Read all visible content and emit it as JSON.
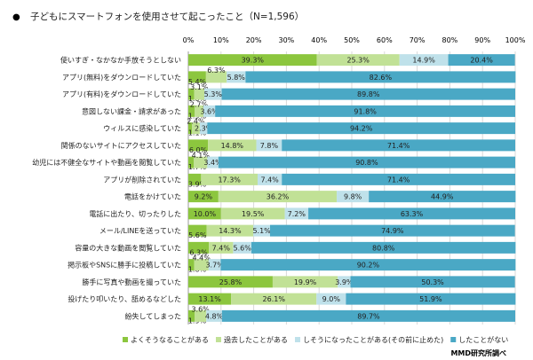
{
  "chart_data": {
    "type": "bar",
    "orientation": "horizontal",
    "stacked": true,
    "title": "子どもにスマートフォンを使用させて起こったこと（N=1,596）",
    "title_bullet": "●",
    "xlim": [
      0,
      100
    ],
    "x_ticks": [
      "0%",
      "10%",
      "20%",
      "30%",
      "40%",
      "50%",
      "60%",
      "70%",
      "80%",
      "90%",
      "100%"
    ],
    "grid": true,
    "legend_position": "bottom",
    "source": "MMD研究所調べ",
    "categories": [
      "使いすぎ・なかなか手放そうとしない",
      "アプリ(無料)をダウンロードしていた",
      "アプリ(有料)をダウンロードしていた",
      "意図しない課金・請求があった",
      "ウィルスに感染していた",
      "関係のないサイトにアクセスしていた",
      "幼児には不健全なサイトや動画を閲覧していた",
      "アプリが削除されていた",
      "電話をかけていた",
      "電話に出たり、切ったりした",
      "メール/LINEを送っていた",
      "容量の大きな動画を閲覧していた",
      "掲示板やSNSに勝手に投稿していた",
      "勝手に写真や動画を撮っていた",
      "投げたり叩いたり、舐めるなどした",
      "紛失してしまった"
    ],
    "series": [
      {
        "name": "よくそうなることがある",
        "color": "#8cc63e",
        "values": [
          39.3,
          5.4,
          1.8,
          1.9,
          1.1,
          6.0,
          1.7,
          3.9,
          9.2,
          10.0,
          5.6,
          6.3,
          1.8,
          25.8,
          13.1,
          1.9
        ]
      },
      {
        "name": "過去したことがある",
        "color": "#c1e196",
        "values": [
          25.3,
          6.3,
          3.1,
          2.7,
          2.4,
          14.8,
          4.1,
          17.3,
          36.2,
          19.5,
          14.3,
          7.4,
          4.4,
          19.9,
          26.1,
          3.6
        ]
      },
      {
        "name": "しそうになったことがある(その前に止めた)",
        "color": "#bfe1ea",
        "values": [
          14.9,
          5.8,
          5.3,
          3.6,
          2.3,
          7.8,
          3.4,
          7.4,
          9.8,
          7.2,
          5.1,
          5.6,
          3.7,
          3.9,
          9.0,
          4.8
        ]
      },
      {
        "name": "したことがない",
        "color": "#4aa8c5",
        "values": [
          20.4,
          82.6,
          89.8,
          91.8,
          94.2,
          71.4,
          90.8,
          71.4,
          44.9,
          63.3,
          74.9,
          80.8,
          90.2,
          50.3,
          51.9,
          89.7
        ]
      }
    ]
  }
}
